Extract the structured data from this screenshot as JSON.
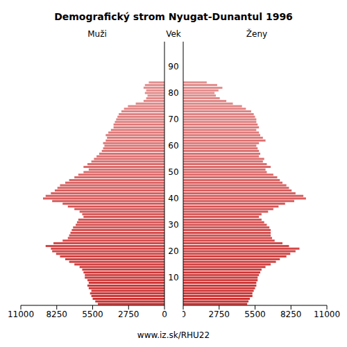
{
  "chart_data": {
    "type": "bar",
    "orientation": "horizontal",
    "title": "Demografický strom Nyugat-Dunantul 1996",
    "y_label": "Vek",
    "caption": "www.iz.sk/RHU22",
    "categories": [
      null,
      null,
      null,
      null,
      null,
      null,
      null,
      null,
      null,
      null,
      "10",
      null,
      null,
      null,
      null,
      null,
      null,
      null,
      null,
      null,
      "20",
      null,
      null,
      null,
      null,
      null,
      null,
      null,
      null,
      null,
      "30",
      null,
      null,
      null,
      null,
      null,
      null,
      null,
      null,
      null,
      "40",
      null,
      null,
      null,
      null,
      null,
      null,
      null,
      null,
      null,
      "50",
      null,
      null,
      null,
      null,
      null,
      null,
      null,
      null,
      null,
      "60",
      null,
      null,
      null,
      null,
      null,
      null,
      null,
      null,
      null,
      "70",
      null,
      null,
      null,
      null,
      null,
      null,
      null,
      null,
      null,
      "80",
      null,
      null,
      null,
      null,
      null,
      null,
      null,
      null,
      null,
      "90",
      null,
      null,
      null,
      null,
      null,
      null,
      null,
      null,
      null
    ],
    "series": [
      {
        "name": "Muži",
        "color": "#cc3030",
        "values": [
          5100,
          5300,
          5500,
          5600,
          5700,
          5600,
          5800,
          5900,
          5800,
          5900,
          6100,
          6100,
          6200,
          6300,
          6500,
          6900,
          7300,
          7600,
          8000,
          8300,
          8600,
          8700,
          9100,
          8500,
          7800,
          7400,
          7300,
          7200,
          7100,
          7000,
          6800,
          6700,
          6600,
          6200,
          6300,
          6500,
          6900,
          7400,
          7800,
          8600,
          9300,
          9100,
          8700,
          8400,
          8200,
          8000,
          7600,
          7300,
          6900,
          6600,
          6200,
          5800,
          6200,
          5900,
          5600,
          5400,
          5200,
          5000,
          4800,
          4700,
          4600,
          4700,
          4500,
          4400,
          4500,
          4300,
          4100,
          3900,
          3900,
          3800,
          3700,
          3600,
          3500,
          3300,
          3100,
          2800,
          2200,
          1600,
          1400,
          1300,
          1500,
          1400,
          1600,
          1500,
          1200,
          null,
          null,
          null,
          null,
          null,
          null,
          null,
          null,
          null,
          null,
          null,
          null,
          null,
          null,
          null
        ]
      },
      {
        "name": "Ženy",
        "color": "#cc3030",
        "values": [
          4900,
          5000,
          5100,
          5300,
          5300,
          5400,
          5500,
          5600,
          5600,
          5700,
          5700,
          5800,
          5900,
          6000,
          6300,
          6700,
          7100,
          7400,
          7900,
          8200,
          8600,
          8900,
          8100,
          7600,
          7000,
          6800,
          6700,
          6700,
          6700,
          6600,
          6400,
          6200,
          6000,
          5800,
          6000,
          6500,
          6900,
          7300,
          7800,
          8500,
          9400,
          9200,
          8600,
          8300,
          8100,
          7900,
          7600,
          7400,
          7200,
          6900,
          6400,
          6300,
          6700,
          6400,
          6100,
          6200,
          5800,
          5900,
          5800,
          5700,
          5600,
          5800,
          6300,
          6100,
          5900,
          5800,
          5600,
          5800,
          5700,
          5600,
          5600,
          5500,
          5400,
          5200,
          4800,
          4500,
          3800,
          3300,
          2800,
          2500,
          2400,
          2700,
          3000,
          2600,
          1800,
          null,
          null,
          null,
          null,
          null,
          null,
          null,
          null,
          null,
          null,
          null,
          null,
          null,
          null,
          null
        ]
      }
    ],
    "xlim": [
      0,
      11000
    ],
    "xticks": [
      0,
      2750,
      5500,
      8250,
      11000
    ]
  }
}
